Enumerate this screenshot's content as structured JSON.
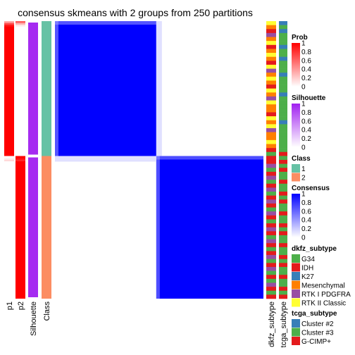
{
  "chart_data": {
    "type": "heatmap",
    "title": "consensus skmeans with 2 groups from 250 partitions",
    "row_annotation_labels": [
      "p1",
      "p2",
      "Silhouette",
      "Class"
    ],
    "column_annotation_labels": [
      "dkfz_subtype",
      "tcga_subtype"
    ],
    "groups": [
      {
        "class": 1,
        "fraction": 0.486,
        "p1_top": [
          0.35,
          0.7,
          0.9,
          1,
          1
        ],
        "p2_top": [
          0.65,
          0.3,
          0.1,
          0,
          0
        ],
        "silhouette": 0.95
      },
      {
        "class": 2,
        "fraction": 0.514,
        "p1_top": [
          0,
          0.05,
          0.15
        ],
        "p2_top": [
          1,
          0.95,
          0.85
        ],
        "silhouette": 0.95
      }
    ],
    "consensus": {
      "within_group": 1,
      "between_group": 0
    },
    "dkfz_colors": [
      "#FFFF33",
      "#FF7F00",
      "#E41A1C",
      "#984EA3",
      "#FF7F00",
      "#FFFF33",
      "#E41A1C",
      "#FF7F00",
      "#FFFF33",
      "#FF7F00",
      "#E41A1C",
      "#FFFF33",
      "#984EA3",
      "#FF7F00",
      "#FFFF33",
      "#FF7F00",
      "#E41A1C",
      "#FFFF33",
      "#FF7F00",
      "#984EA3",
      "#FFFF33",
      "#FF7F00",
      "#FF7F00",
      "#E41A1C",
      "#FFFF33",
      "#FF7F00",
      "#FFFF33",
      "#984EA3",
      "#FF7F00",
      "#FF7F00",
      "#FFFF33",
      "#FF7F00",
      "#E41A1C",
      "#4DAF4A",
      "#E41A1C",
      "#E41A1C",
      "#984EA3",
      "#4DAF4A",
      "#E41A1C",
      "#984EA3",
      "#4DAF4A",
      "#E41A1C",
      "#984EA3",
      "#4DAF4A",
      "#E41A1C",
      "#984EA3",
      "#E41A1C",
      "#4DAF4A",
      "#984EA3",
      "#E41A1C",
      "#4DAF4A",
      "#E41A1C",
      "#984EA3",
      "#E41A1C",
      "#4DAF4A",
      "#984EA3",
      "#E41A1C",
      "#4DAF4A",
      "#E41A1C",
      "#984EA3",
      "#4DAF4A",
      "#E41A1C",
      "#984EA3",
      "#4DAF4A",
      "#E41A1C",
      "#4DAF4A",
      "#984EA3",
      "#E41A1C",
      "#4DAF4A",
      "#E41A1C"
    ],
    "tcga_colors": [
      "#377EB8",
      "#4DAF4A",
      "#377EB8",
      "#4DAF4A",
      "#4DAF4A",
      "#4DAF4A",
      "#377EB8",
      "#4DAF4A",
      "#4DAF4A",
      "#377EB8",
      "#4DAF4A",
      "#4DAF4A",
      "#4DAF4A",
      "#377EB8",
      "#4DAF4A",
      "#4DAF4A",
      "#4DAF4A",
      "#4DAF4A",
      "#377EB8",
      "#4DAF4A",
      "#4DAF4A",
      "#4DAF4A",
      "#4DAF4A",
      "#4DAF4A",
      "#4DAF4A",
      "#377EB8",
      "#4DAF4A",
      "#4DAF4A",
      "#4DAF4A",
      "#4DAF4A",
      "#4DAF4A",
      "#4DAF4A",
      "#4DAF4A",
      "#E41A1C",
      "#4DAF4A",
      "#E41A1C",
      "#4DAF4A",
      "#E41A1C",
      "#4DAF4A",
      "#4DAF4A",
      "#E41A1C",
      "#4DAF4A",
      "#4DAF4A",
      "#E41A1C",
      "#4DAF4A",
      "#E41A1C",
      "#4DAF4A",
      "#4DAF4A",
      "#E41A1C",
      "#4DAF4A",
      "#4DAF4A",
      "#E41A1C",
      "#4DAF4A",
      "#E41A1C",
      "#4DAF4A",
      "#4DAF4A",
      "#E41A1C",
      "#4DAF4A",
      "#4DAF4A",
      "#E41A1C",
      "#4DAF4A",
      "#E41A1C",
      "#4DAF4A",
      "#4DAF4A",
      "#E41A1C",
      "#4DAF4A",
      "#4DAF4A",
      "#E41A1C",
      "#4DAF4A",
      "#E41A1C"
    ],
    "legends": [
      {
        "title": "Prob",
        "type": "gradient",
        "low": "#FFFFFF",
        "high": "#FF0000",
        "ticks": [
          "1",
          "0.8",
          "0.6",
          "0.4",
          "0.2",
          "0"
        ]
      },
      {
        "title": "Silhouette",
        "type": "gradient",
        "low": "#FFFFFF",
        "high": "#A020F0",
        "ticks": [
          "1",
          "0.8",
          "0.6",
          "0.4",
          "0.2",
          "0"
        ]
      },
      {
        "title": "Class",
        "type": "discrete",
        "items": [
          {
            "label": "1",
            "color": "#66C2A5"
          },
          {
            "label": "2",
            "color": "#FC8D62"
          }
        ]
      },
      {
        "title": "Consensus",
        "type": "gradient",
        "low": "#FFFFFF",
        "high": "#0000FF",
        "ticks": [
          "1",
          "0.8",
          "0.6",
          "0.4",
          "0.2",
          "0"
        ]
      },
      {
        "title": "dkfz_subtype",
        "type": "discrete",
        "items": [
          {
            "label": "G34",
            "color": "#4DAF4A"
          },
          {
            "label": "IDH",
            "color": "#E41A1C"
          },
          {
            "label": "K27",
            "color": "#377EB8"
          },
          {
            "label": "Mesenchymal",
            "color": "#FF7F00"
          },
          {
            "label": "RTK I PDGFRA",
            "color": "#984EA3"
          },
          {
            "label": "RTK II Classic",
            "color": "#FFFF33"
          }
        ]
      },
      {
        "title": "tcga_subtype",
        "type": "discrete",
        "items": [
          {
            "label": "Cluster #2",
            "color": "#377EB8"
          },
          {
            "label": "Cluster #3",
            "color": "#4DAF4A"
          },
          {
            "label": "G-CIMP+",
            "color": "#E41A1C"
          }
        ]
      }
    ]
  }
}
